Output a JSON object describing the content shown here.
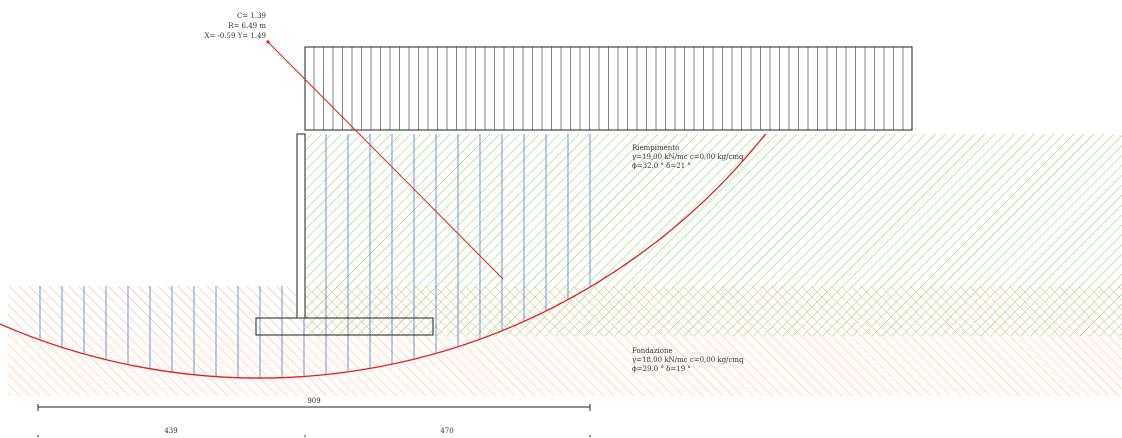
{
  "colors": {
    "fill_soil": "#7bc142",
    "foundation_soil": "#f0a070",
    "slip_circle": "#e02020",
    "slice_lines": "#4a7ec8",
    "outline": "#222222"
  },
  "circle_info": {
    "line1": "C= 1.39",
    "line2": "R= 6.49 m",
    "line3": "X= -0.59  Y= 1.49"
  },
  "fill_soil": {
    "name": "Riempimento",
    "props1": "γ=19,00 kN/mc c=0,00 kg/cmq",
    "props2": "ϕ=32.0 ° δ=21 °"
  },
  "foundation_soil": {
    "name": "Fondazione",
    "props1": "γ=18,00 kN/mc c=0,00 kg/cmq",
    "props2": "ϕ=29.0 ° δ=19 °"
  },
  "dimensions": {
    "total": "909",
    "left_part": "439",
    "right_part": "470"
  }
}
